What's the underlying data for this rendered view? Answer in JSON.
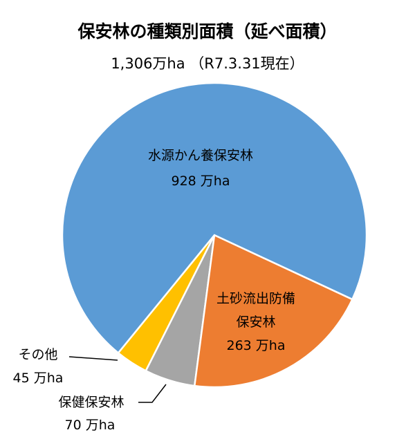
{
  "chart_data": {
    "type": "pie",
    "title": "保安林の種類別面積（延べ面積）",
    "subtitle": "1,306万ha （R7.3.31現在）",
    "categories": [
      "水源かん養保安林",
      "土砂流出防備保安林",
      "保健保安林",
      "その他"
    ],
    "values": [
      928,
      263,
      70,
      45
    ],
    "value_labels": [
      "928 万ha",
      "263 万ha",
      "70 万ha",
      "45 万ha"
    ],
    "colors": [
      "#5b9bd5",
      "#ed7d31",
      "#a5a5a5",
      "#ffc000"
    ]
  }
}
